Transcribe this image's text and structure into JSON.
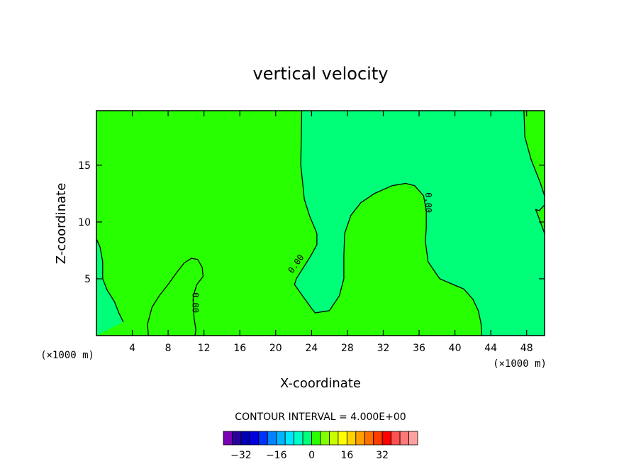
{
  "chart_data": {
    "type": "contour",
    "title": "vertical velocity",
    "xlabel": "X-coordinate",
    "ylabel": "Z-coordinate",
    "x_unit": "(×1000 m)",
    "x_unit_right": "(×1000 m)",
    "xlim": [
      0,
      50
    ],
    "ylim": [
      0,
      19.8
    ],
    "x_ticks": [
      4,
      8,
      12,
      16,
      20,
      24,
      28,
      32,
      36,
      40,
      44,
      48
    ],
    "y_ticks": [
      5,
      10,
      15
    ],
    "contour_interval_text": "CONTOUR INTERVAL = 4.000E+00",
    "contour_labels": [
      {
        "text": "0.00",
        "x": 11.0,
        "y": 2.9
      },
      {
        "text": "0.00",
        "x": 22.3,
        "y": 6.3
      },
      {
        "text": "0.00",
        "x": 37.0,
        "y": 11.7
      }
    ],
    "colorbar": {
      "tick_labels": [
        "-32",
        "-16",
        "0",
        "16",
        "32"
      ],
      "tick_values": [
        -32,
        -16,
        0,
        16,
        32
      ],
      "bins": [
        {
          "lo": -40,
          "hi": -36,
          "color": "#7a00b4"
        },
        {
          "lo": -36,
          "hi": -32,
          "color": "#2a009c"
        },
        {
          "lo": -32,
          "hi": -28,
          "color": "#0000b4"
        },
        {
          "lo": -28,
          "hi": -24,
          "color": "#0000dc"
        },
        {
          "lo": -24,
          "hi": -20,
          "color": "#0032ff"
        },
        {
          "lo": -20,
          "hi": -16,
          "color": "#0082ff"
        },
        {
          "lo": -16,
          "hi": -12,
          "color": "#00b4ff"
        },
        {
          "lo": -12,
          "hi": -8,
          "color": "#00e6ff"
        },
        {
          "lo": -8,
          "hi": -4,
          "color": "#00ffc8"
        },
        {
          "lo": -4,
          "hi": 0,
          "color": "#00ff78"
        },
        {
          "lo": 0,
          "hi": 4,
          "color": "#28ff00"
        },
        {
          "lo": 4,
          "hi": 8,
          "color": "#82ff00"
        },
        {
          "lo": 8,
          "hi": 12,
          "color": "#c8ff00"
        },
        {
          "lo": 12,
          "hi": 16,
          "color": "#ffff00"
        },
        {
          "lo": 16,
          "hi": 20,
          "color": "#ffd200"
        },
        {
          "lo": 20,
          "hi": 24,
          "color": "#ffa000"
        },
        {
          "lo": 24,
          "hi": 28,
          "color": "#ff6e00"
        },
        {
          "lo": 28,
          "hi": 32,
          "color": "#ff3c00"
        },
        {
          "lo": 32,
          "hi": 36,
          "color": "#ff0000"
        },
        {
          "lo": 36,
          "hi": 40,
          "color": "#ff5050"
        },
        {
          "lo": 40,
          "hi": 44,
          "color": "#ff7878"
        },
        {
          "lo": 44,
          "hi": 48,
          "color": "#ffa0a0"
        }
      ]
    },
    "field_colors": {
      "negative": "#00ff78",
      "positive": "#28ff00"
    },
    "zero_contours": [
      [
        [
          0,
          8.5
        ],
        [
          0.4,
          7.8
        ],
        [
          0.7,
          6.5
        ],
        [
          0.7,
          5
        ],
        [
          1.2,
          4
        ],
        [
          2,
          3
        ],
        [
          2.5,
          2
        ],
        [
          3,
          1.2
        ]
      ],
      [
        [
          5.8,
          0
        ],
        [
          5.7,
          1
        ],
        [
          6.2,
          2.5
        ],
        [
          7,
          3.5
        ],
        [
          8,
          4.5
        ],
        [
          9,
          5.6
        ],
        [
          9.8,
          6.4
        ],
        [
          10.6,
          6.8
        ],
        [
          11.3,
          6.7
        ],
        [
          11.8,
          6
        ],
        [
          11.9,
          5.2
        ],
        [
          11.2,
          4.5
        ],
        [
          10.8,
          3.5
        ],
        [
          10.8,
          2.5
        ],
        [
          10.9,
          1.5
        ],
        [
          11.1,
          0.5
        ],
        [
          11.0,
          0
        ]
      ],
      [
        [
          22.9,
          19.8
        ],
        [
          22.8,
          15
        ],
        [
          23.2,
          12
        ],
        [
          23.8,
          10.5
        ],
        [
          24.6,
          9
        ],
        [
          24.6,
          8
        ],
        [
          23.9,
          7
        ],
        [
          23.1,
          6
        ],
        [
          22.3,
          5
        ],
        [
          22.1,
          4.5
        ],
        [
          23,
          3.5
        ],
        [
          24,
          2.4
        ],
        [
          24.4,
          2
        ],
        [
          26,
          2.2
        ],
        [
          27.1,
          3.5
        ],
        [
          27.6,
          5
        ],
        [
          27.6,
          7
        ],
        [
          27.7,
          9
        ],
        [
          28.4,
          10.6
        ],
        [
          29.5,
          11.7
        ],
        [
          31,
          12.5
        ],
        [
          33,
          13.2
        ],
        [
          34.5,
          13.4
        ],
        [
          35.5,
          13.2
        ],
        [
          36.5,
          12.3
        ],
        [
          36.8,
          11
        ],
        [
          36.8,
          9.5
        ],
        [
          36.7,
          8.3
        ],
        [
          37,
          6.5
        ],
        [
          38.3,
          5
        ],
        [
          39.8,
          4.5
        ],
        [
          41,
          4.1
        ],
        [
          42,
          3.2
        ],
        [
          42.6,
          2.2
        ],
        [
          42.9,
          1.1
        ],
        [
          43.0,
          0
        ]
      ],
      [
        [
          47.7,
          19.8
        ],
        [
          47.8,
          17.5
        ],
        [
          48.5,
          15.5
        ],
        [
          49.5,
          13.5
        ],
        [
          50,
          12.3
        ]
      ],
      [
        [
          50,
          11.5
        ],
        [
          49.4,
          11
        ],
        [
          49,
          11.1
        ],
        [
          49.3,
          10.5
        ],
        [
          50,
          9
        ]
      ]
    ]
  }
}
